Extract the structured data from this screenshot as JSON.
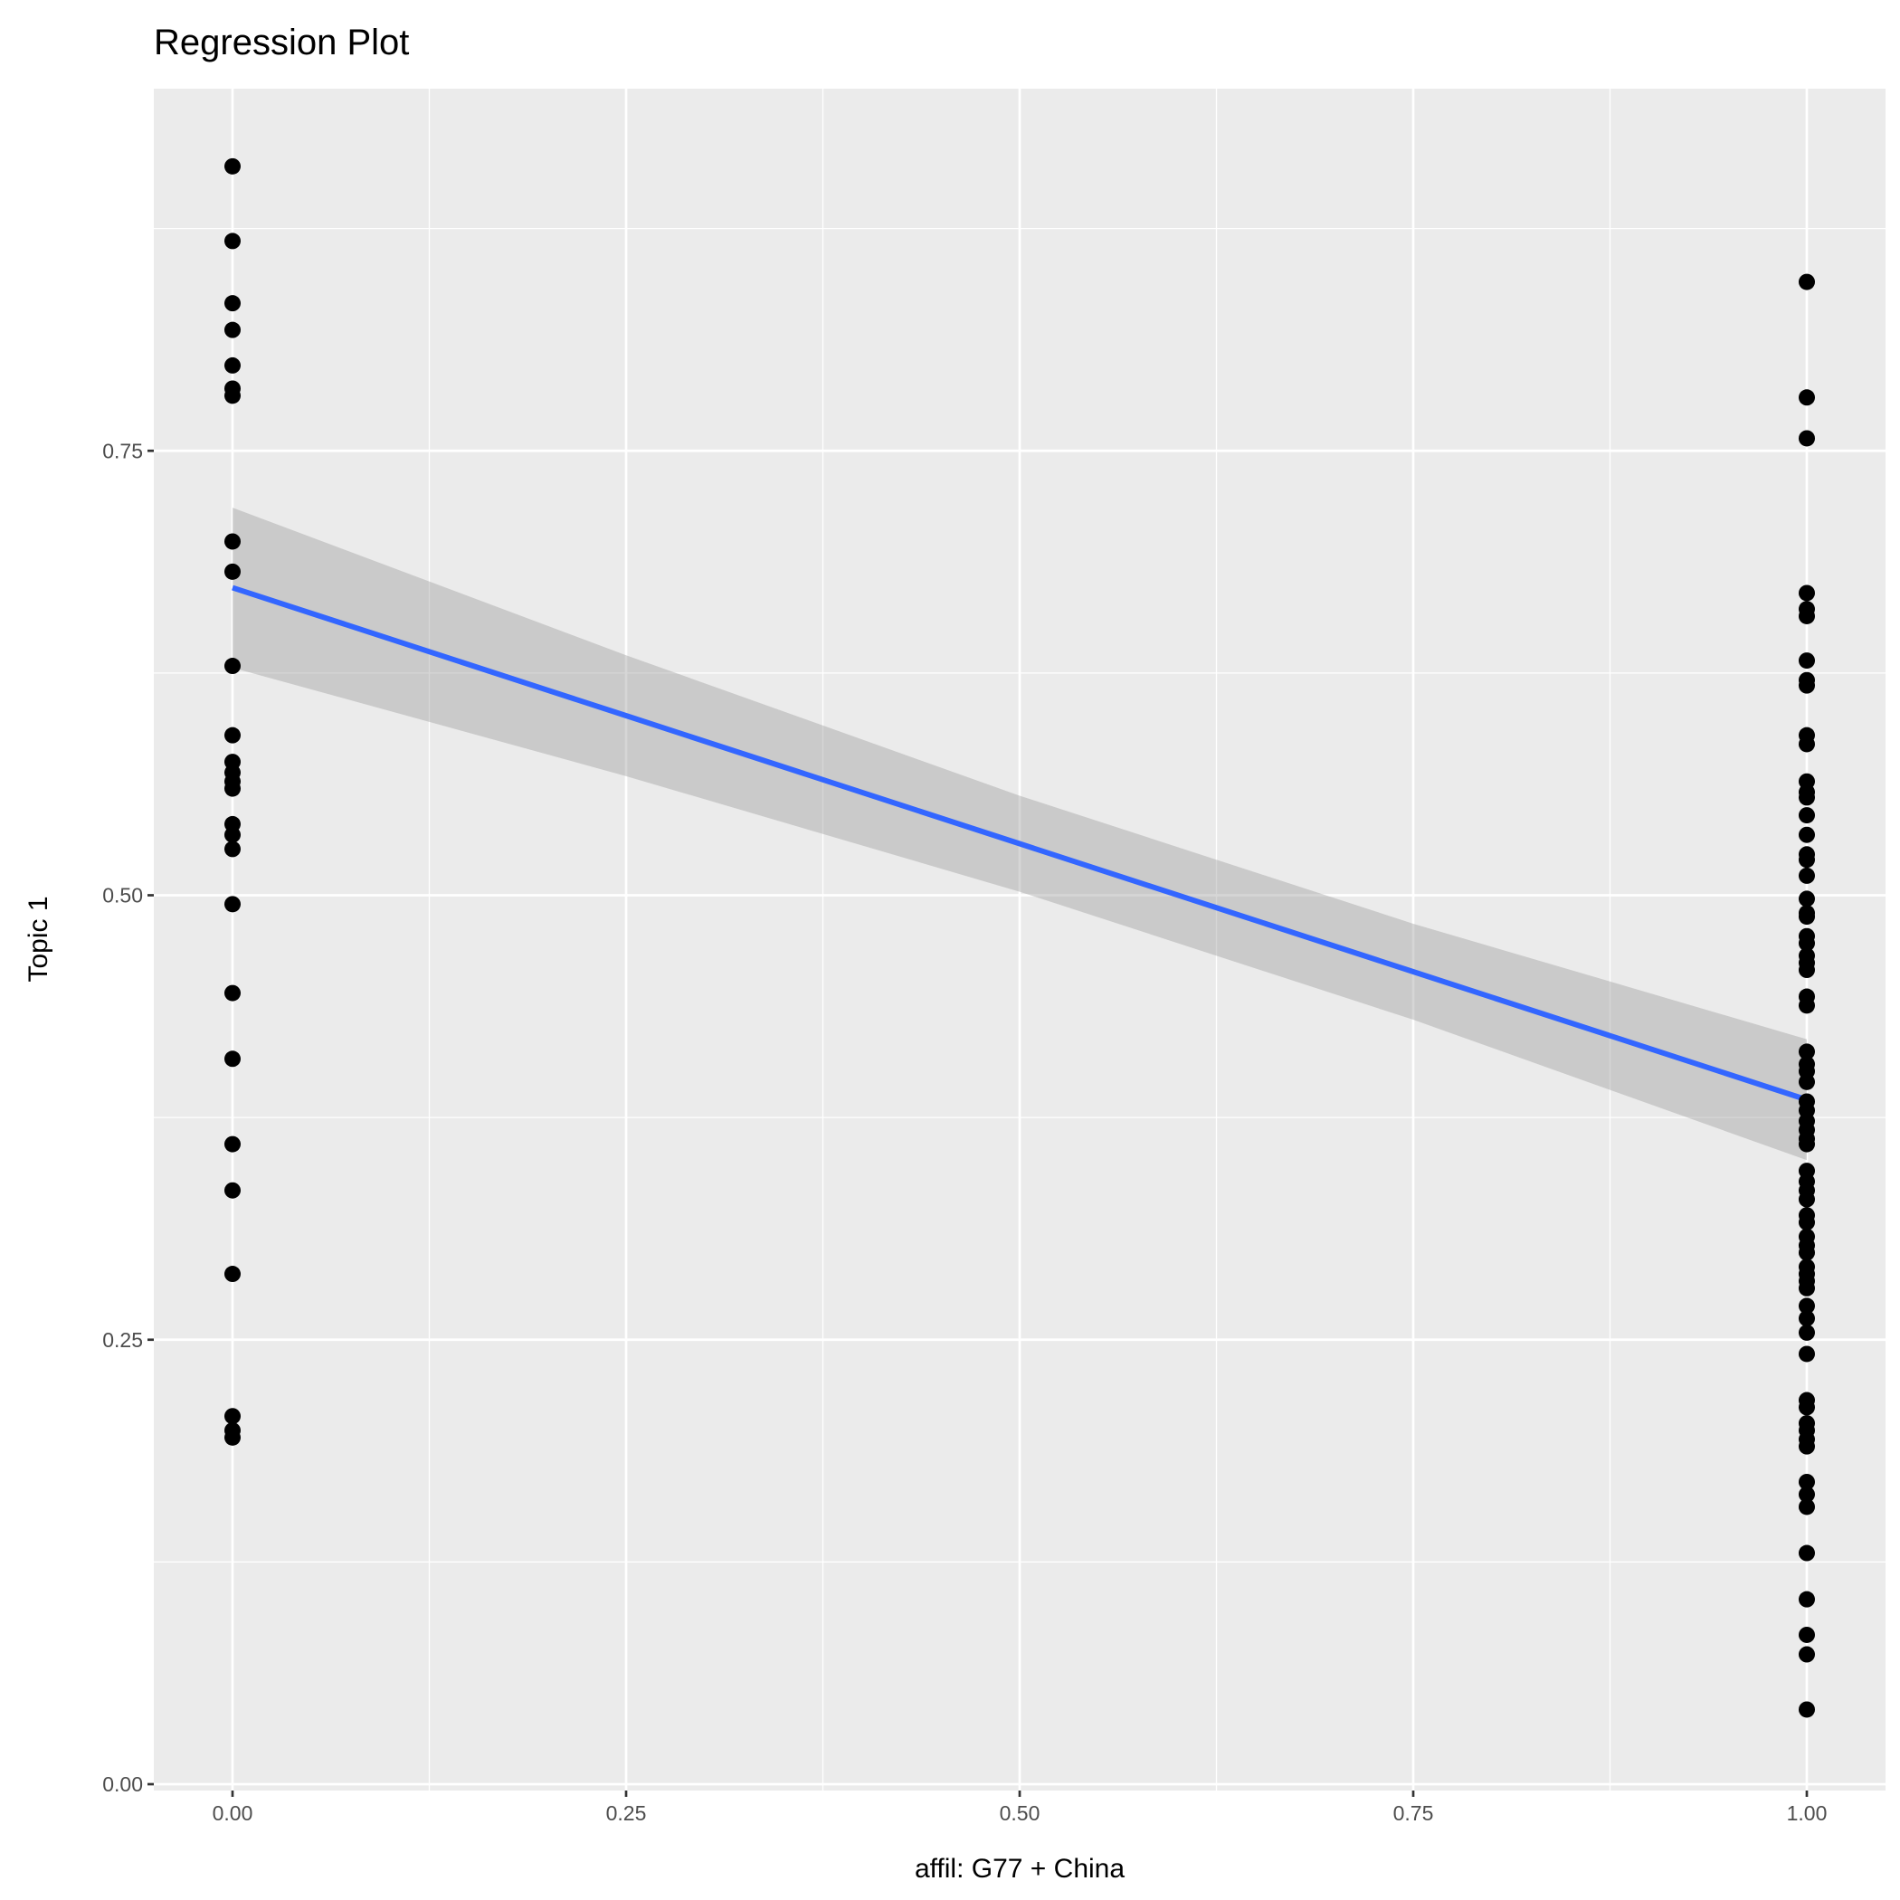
{
  "chart_data": {
    "type": "scatter",
    "title": "Regression Plot",
    "xlabel": "affil: G77 + China",
    "ylabel": "Topic 1",
    "xlim": [
      -0.05,
      1.05
    ],
    "ylim": [
      0.0,
      0.95
    ],
    "xticks": [
      "0.00",
      "0.25",
      "0.50",
      "0.75",
      "1.00"
    ],
    "yticks": [
      "0.00",
      "0.25",
      "0.50",
      "0.75"
    ],
    "grid": true,
    "point_color": "#000000",
    "line_color": "#3366FF",
    "ribbon_color": "#999999",
    "panel_bg": "#EBEBEB",
    "series": [
      {
        "name": "x=0",
        "x": 0,
        "values": [
          0.91,
          0.868,
          0.833,
          0.818,
          0.798,
          0.785,
          0.781,
          0.699,
          0.682,
          0.629,
          0.59,
          0.575,
          0.569,
          0.564,
          0.56,
          0.54,
          0.534,
          0.526,
          0.495,
          0.445,
          0.408,
          0.36,
          0.334,
          0.287,
          0.207,
          0.199,
          0.195
        ]
      },
      {
        "name": "x=1",
        "x": 1,
        "values": [
          0.845,
          0.78,
          0.757,
          0.67,
          0.661,
          0.657,
          0.632,
          0.621,
          0.618,
          0.59,
          0.585,
          0.564,
          0.558,
          0.555,
          0.545,
          0.534,
          0.523,
          0.52,
          0.511,
          0.498,
          0.49,
          0.488,
          0.477,
          0.473,
          0.466,
          0.462,
          0.458,
          0.443,
          0.438,
          0.412,
          0.405,
          0.401,
          0.395,
          0.384,
          0.379,
          0.373,
          0.368,
          0.363,
          0.36,
          0.345,
          0.339,
          0.334,
          0.329,
          0.32,
          0.316,
          0.308,
          0.303,
          0.299,
          0.291,
          0.287,
          0.283,
          0.279,
          0.269,
          0.262,
          0.254,
          0.242,
          0.216,
          0.212,
          0.203,
          0.199,
          0.194,
          0.19,
          0.17,
          0.163,
          0.156,
          0.13,
          0.104,
          0.084,
          0.073,
          0.042
        ]
      }
    ],
    "regression": {
      "x": [
        0,
        0.25,
        0.5,
        0.75,
        1
      ],
      "fit": [
        0.673,
        0.601,
        0.529,
        0.457,
        0.385
      ],
      "ci_upper": [
        0.718,
        0.635,
        0.556,
        0.484,
        0.419
      ],
      "ci_lower": [
        0.628,
        0.567,
        0.502,
        0.43,
        0.351
      ]
    }
  }
}
